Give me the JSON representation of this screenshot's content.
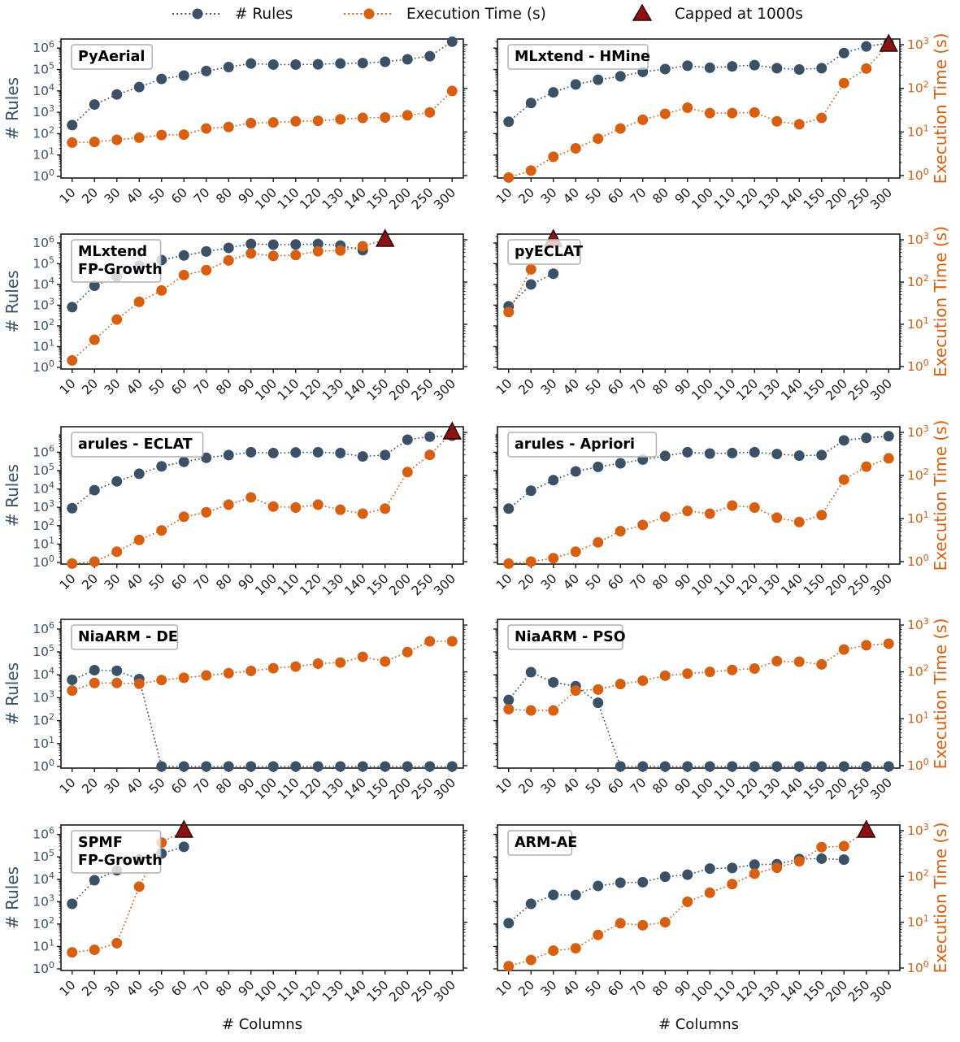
{
  "figure": {
    "xlabel": "# Columns",
    "left_axis_label": "# Rules",
    "right_axis_label": "Execution Time (s)"
  },
  "legend": {
    "items": [
      {
        "label": "# Rules",
        "marker": "dotted-line-circle",
        "color": "#3a5168"
      },
      {
        "label": "Execution Time (s)",
        "marker": "dotted-line-circle",
        "color": "#d85f10"
      },
      {
        "label": "Capped at 1000s",
        "marker": "triangle",
        "color": "#8b1212"
      }
    ]
  },
  "colors": {
    "rules": "#3a5168",
    "time": "#d85f10",
    "capped": "#8b1212",
    "capped_edge": "#2d0606",
    "spine": "#1a1a1a",
    "xtick_label": "#1a1a1a",
    "title_box_border": "#b0b0b0"
  },
  "chart_data": {
    "type": "line",
    "scale": "log-log-category",
    "categories": [
      "10",
      "20",
      "30",
      "40",
      "50",
      "60",
      "70",
      "80",
      "90",
      "100",
      "110",
      "120",
      "130",
      "140",
      "150",
      "200",
      "250",
      "300"
    ],
    "xlabel": "# Columns",
    "left_axis": {
      "label": "# Rules",
      "scale": "log",
      "tick_exponents": [
        0,
        1,
        2,
        3,
        4,
        5,
        6
      ]
    },
    "right_axis": {
      "label": "Execution Time (s)",
      "scale": "log",
      "tick_exponents": [
        0,
        1,
        2,
        3
      ]
    },
    "legend_position": "top",
    "grid": false,
    "panels": [
      {
        "name": "pyaerial",
        "row": 0,
        "col": 0,
        "title_lines": [
          "PyAerial"
        ],
        "capped_at": null,
        "rules": [
          250,
          2300,
          6800,
          15000,
          36000,
          52000,
          85000,
          130000,
          190000,
          170000,
          170000,
          175000,
          190000,
          200000,
          230000,
          300000,
          420000,
          2000000
        ],
        "times": [
          5.7,
          5.9,
          6.6,
          7.4,
          8.5,
          8.7,
          12,
          13,
          16,
          16.5,
          17.5,
          18,
          19.5,
          21,
          21.5,
          24,
          28,
          87
        ]
      },
      {
        "name": "mlxtend-hmine",
        "row": 0,
        "col": 1,
        "title_lines": [
          "MLxtend - HMine"
        ],
        "capped_at": "300",
        "rules": [
          360,
          2700,
          8500,
          20000,
          33000,
          48000,
          78000,
          105000,
          150000,
          120000,
          140000,
          160000,
          115000,
          100000,
          115000,
          590000,
          1200000,
          1700000
        ],
        "times": [
          0.9,
          1.3,
          2.7,
          4.2,
          7,
          12,
          19,
          26,
          36,
          27,
          27,
          28,
          17.5,
          15,
          21,
          132,
          284,
          null
        ]
      },
      {
        "name": "mlxtend-fpgrowth",
        "row": 1,
        "col": 0,
        "title_lines": [
          "MLxtend",
          "FP-Growth"
        ],
        "capped_at": "150",
        "rules": [
          800,
          8700,
          24000,
          80000,
          150000,
          250000,
          390000,
          580000,
          900000,
          830000,
          850000,
          900000,
          750000,
          450000,
          null,
          null,
          null,
          null
        ],
        "times": [
          1.4,
          4.3,
          13,
          34,
          63,
          146,
          191,
          325,
          475,
          415,
          435,
          535,
          560,
          700,
          null,
          null,
          null,
          null
        ]
      },
      {
        "name": "pyeclat",
        "row": 1,
        "col": 1,
        "title_lines": [
          "pyECLAT"
        ],
        "capped_at": "30",
        "rules": [
          880,
          10000,
          33000,
          null,
          null,
          null,
          null,
          null,
          null,
          null,
          null,
          null,
          null,
          null,
          null,
          null,
          null,
          null
        ],
        "times": [
          19.5,
          200,
          null,
          null,
          null,
          null,
          null,
          null,
          null,
          null,
          null,
          null,
          null,
          null,
          null,
          null,
          null,
          null
        ]
      },
      {
        "name": "arules-eclat",
        "row": 2,
        "col": 0,
        "title_lines": [
          "arules - ECLAT"
        ],
        "capped_at": "300",
        "tall_left": true,
        "rules": [
          900,
          8600,
          26000,
          67000,
          170000,
          300000,
          500000,
          700000,
          1000000,
          900000,
          970000,
          1000000,
          900000,
          590000,
          700000,
          4800000,
          7000000,
          8000000
        ],
        "times": [
          0.9,
          1.0,
          1.7,
          3.2,
          5.3,
          11,
          14,
          21,
          31,
          19,
          18,
          21,
          16,
          13,
          17,
          120,
          300,
          null
        ]
      },
      {
        "name": "arules-apriori",
        "row": 2,
        "col": 1,
        "title_lines": [
          "arules - Apriori"
        ],
        "capped_at": null,
        "tall_left": true,
        "rules": [
          850,
          8000,
          30000,
          90000,
          160000,
          250000,
          400000,
          630000,
          1000000,
          850000,
          900000,
          1000000,
          800000,
          650000,
          700000,
          4400000,
          6000000,
          7500000
        ],
        "times": [
          0.9,
          1.0,
          1.2,
          1.7,
          2.8,
          5.1,
          7.1,
          11,
          15,
          13,
          20,
          18,
          10.5,
          8.3,
          12,
          80,
          160,
          250
        ]
      },
      {
        "name": "niaarm-de",
        "row": 3,
        "col": 0,
        "title_lines": [
          "NiaARM - DE"
        ],
        "capped_at": null,
        "rules": [
          6000,
          16000,
          15000,
          6500,
          1,
          1,
          1,
          1,
          1,
          1,
          1,
          1,
          1,
          1,
          1,
          1,
          1,
          1
        ],
        "times": [
          40,
          58,
          58,
          56,
          67,
          75,
          84,
          94,
          105,
          120,
          130,
          150,
          158,
          210,
          167,
          265,
          450,
          450
        ]
      },
      {
        "name": "niaarm-pso",
        "row": 3,
        "col": 1,
        "title_lines": [
          "NiaARM - PSO"
        ],
        "capped_at": null,
        "rules": [
          800,
          13000,
          4700,
          3200,
          600,
          1,
          1,
          1,
          1,
          1,
          1,
          1,
          1,
          1,
          1,
          1,
          1,
          1
        ],
        "times": [
          16,
          15,
          15,
          40,
          42,
          55,
          65,
          83,
          92,
          100,
          110,
          118,
          170,
          165,
          145,
          300,
          370,
          400
        ]
      },
      {
        "name": "spmf-fpgrowth",
        "row": 4,
        "col": 0,
        "title_lines": [
          "SPMF",
          "FP-Growth"
        ],
        "capped_at": "60",
        "rules": [
          800,
          9000,
          25000,
          75000,
          140000,
          280000,
          null,
          null,
          null,
          null,
          null,
          null,
          null,
          null,
          null,
          null,
          null,
          null
        ],
        "times": [
          2.2,
          2.5,
          3.5,
          60,
          550,
          null,
          null,
          null,
          null,
          null,
          null,
          null,
          null,
          null,
          null,
          null,
          null,
          null
        ]
      },
      {
        "name": "arm-ae",
        "row": 4,
        "col": 1,
        "title_lines": [
          "ARM-AE"
        ],
        "capped_at": "250",
        "rules": [
          110,
          800,
          2000,
          2000,
          5000,
          7000,
          7400,
          13000,
          16000,
          30000,
          32000,
          45000,
          47000,
          80000,
          83000,
          75000,
          null,
          null
        ],
        "times": [
          1.1,
          1.5,
          2.4,
          2.7,
          5.3,
          9.5,
          8.6,
          10,
          28,
          44,
          68,
          115,
          155,
          215,
          437,
          460,
          null,
          null
        ]
      }
    ]
  }
}
